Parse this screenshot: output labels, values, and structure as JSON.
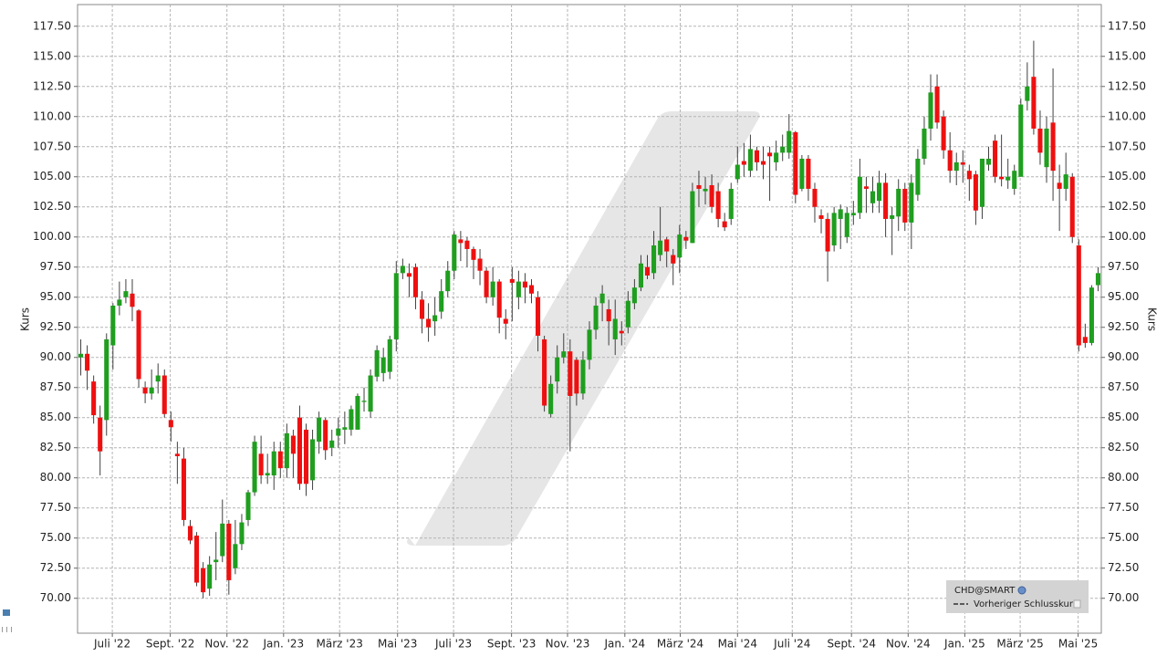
{
  "chart_data": {
    "type": "candlestick",
    "name": "CHD@SMART",
    "reference_line_label": "Vorheriger Schlusskurs",
    "ylabel": "Kurs",
    "up_color": "#1f9e1f",
    "down_color": "#ee1010",
    "wick_color": "#404040",
    "grid": true,
    "legend": "lower right",
    "xlim": [
      -0.5,
      158.5
    ],
    "ylim": [
      67.1,
      119.3
    ],
    "xticks": [
      {
        "value": 4.9,
        "label": "Juli '22"
      },
      {
        "value": 13.9,
        "label": "Sept. '22"
      },
      {
        "value": 22.7,
        "label": "Nov. '22"
      },
      {
        "value": 31.5,
        "label": "Jan. '23"
      },
      {
        "value": 40.2,
        "label": "März '23"
      },
      {
        "value": 49.2,
        "label": "Mai '23"
      },
      {
        "value": 57.9,
        "label": "Juli '23"
      },
      {
        "value": 66.9,
        "label": "Sept. '23"
      },
      {
        "value": 75.6,
        "label": "Nov. '23"
      },
      {
        "value": 84.5,
        "label": "Jan. '24"
      },
      {
        "value": 93.1,
        "label": "März '24"
      },
      {
        "value": 102,
        "label": "Mai '24"
      },
      {
        "value": 110.5,
        "label": "Juli '24"
      },
      {
        "value": 119.7,
        "label": "Sept. '24"
      },
      {
        "value": 128.5,
        "label": "Nov. '24"
      },
      {
        "value": 137.3,
        "label": "Jan. '25"
      },
      {
        "value": 145.9,
        "label": "März '25"
      },
      {
        "value": 154.9,
        "label": "Mai '25"
      }
    ],
    "yticks": [
      {
        "value": 70,
        "label": "70.00"
      },
      {
        "value": 72.5,
        "label": "72.50"
      },
      {
        "value": 75,
        "label": "75.00"
      },
      {
        "value": 77.5,
        "label": "77.50"
      },
      {
        "value": 80,
        "label": "80.00"
      },
      {
        "value": 82.5,
        "label": "82.50"
      },
      {
        "value": 85,
        "label": "85.00"
      },
      {
        "value": 87.5,
        "label": "87.50"
      },
      {
        "value": 90,
        "label": "90.00"
      },
      {
        "value": 92.5,
        "label": "92.50"
      },
      {
        "value": 95,
        "label": "95.00"
      },
      {
        "value": 97.5,
        "label": "97.50"
      },
      {
        "value": 100,
        "label": "100.00"
      },
      {
        "value": 102.5,
        "label": "102.50"
      },
      {
        "value": 105,
        "label": "105.00"
      },
      {
        "value": 107.5,
        "label": "107.50"
      },
      {
        "value": 110,
        "label": "110.00"
      },
      {
        "value": 112.5,
        "label": "112.50"
      },
      {
        "value": 115,
        "label": "115.00"
      },
      {
        "value": 117.5,
        "label": "117.50"
      }
    ],
    "open": [
      90,
      90.3,
      88,
      85,
      84.8,
      91,
      94.3,
      95,
      95.3,
      93.9,
      87.5,
      87,
      88,
      88.5,
      84.8,
      82,
      81.6,
      76,
      75.2,
      72.5,
      70.8,
      73,
      73.5,
      76.2,
      72.5,
      74.5,
      76.5,
      78.8,
      82,
      80.2,
      80.2,
      82.2,
      80.8,
      83.5,
      85,
      84,
      79.8,
      83,
      84.8,
      82.5,
      83.5,
      84,
      84,
      84,
      86.3,
      85.5,
      88.4,
      88.7,
      88.8,
      91.5,
      97,
      97,
      97.5,
      94.8,
      93.2,
      93,
      93.8,
      95.5,
      97.2,
      99.8,
      99.7,
      99,
      98.2,
      97.2,
      95,
      96.3,
      93.2,
      96.5,
      95,
      96.3,
      96,
      95,
      91.5,
      85.3,
      88,
      90,
      90.5,
      89.8,
      87,
      89.8,
      92.3,
      94.5,
      94,
      91.5,
      92.2,
      92.5,
      94.5,
      95.8,
      97.5,
      97,
      98.5,
      99.8,
      98.5,
      98.3,
      100,
      99.5,
      104.3,
      103.8,
      104.3,
      103.8,
      101.3,
      101.5,
      104.8,
      106.3,
      105.5,
      107.2,
      106.3,
      107,
      106.2,
      107,
      107,
      108.7,
      104,
      106.5,
      104,
      101.8,
      101.5,
      99.3,
      101.5,
      100,
      101.8,
      102,
      104.2,
      102.8,
      103,
      104.5,
      101.5,
      101.7,
      104,
      101.2,
      103.5,
      106.5,
      109,
      112.5,
      110,
      107.2,
      105.5,
      106.2,
      105.5,
      105.2,
      102.5,
      106,
      108,
      105,
      104.7,
      104,
      105,
      111.3,
      113.3,
      109,
      105.8,
      109.5,
      104.5,
      104,
      105,
      99.3,
      91.7,
      91.2,
      96
    ],
    "high": [
      91.5,
      91,
      88.5,
      86,
      92,
      94.5,
      96.3,
      96.5,
      96.5,
      94,
      88,
      89,
      89.5,
      89,
      85.5,
      83,
      82.5,
      76.5,
      75.5,
      73,
      73.5,
      75.5,
      78.2,
      76.5,
      76.5,
      77,
      79,
      83.5,
      83.5,
      82,
      83,
      83,
      84.5,
      84,
      86,
      84.5,
      84,
      85.5,
      85,
      84,
      85,
      85.5,
      86,
      87,
      87.5,
      89,
      91,
      90.8,
      91.8,
      98,
      98.2,
      97.8,
      97.8,
      95.5,
      94.5,
      95,
      96.5,
      98,
      100.5,
      100.5,
      100,
      99.2,
      99,
      97.5,
      97.5,
      96.5,
      94,
      97.5,
      97.2,
      97,
      96.5,
      95.5,
      91.8,
      88.5,
      91,
      92,
      91.5,
      90,
      90.5,
      93,
      95,
      96,
      94.8,
      94.8,
      93,
      95.5,
      96.5,
      98.5,
      98.5,
      100.5,
      102.5,
      100,
      99,
      101,
      100.5,
      104.5,
      105.5,
      105,
      105.2,
      104.5,
      102,
      104.5,
      107.5,
      107.8,
      108.5,
      107.5,
      107.5,
      107.5,
      108,
      108.5,
      110.2,
      108.8,
      106.8,
      106.8,
      104.5,
      102.3,
      102,
      102.5,
      102.7,
      102.5,
      103,
      106.5,
      105,
      105,
      105.5,
      105.3,
      102.5,
      104.8,
      104.5,
      105.2,
      107.3,
      110,
      113.5,
      113.5,
      110.5,
      108.7,
      107,
      107.2,
      106,
      105.5,
      106.5,
      107.5,
      108.5,
      108.5,
      106.5,
      106,
      111.5,
      114.5,
      116.3,
      110.5,
      110,
      114,
      106,
      107,
      105.3,
      99.8,
      92.8,
      96,
      97.5
    ],
    "low": [
      88.5,
      87.3,
      84.5,
      80.2,
      83.5,
      89,
      93.5,
      94.5,
      93,
      87.5,
      86.2,
      86.5,
      87,
      85,
      83,
      79.5,
      76,
      74.5,
      71,
      70,
      70.2,
      71.5,
      73,
      70.3,
      72,
      74,
      76,
      78.5,
      79.5,
      79.5,
      79,
      80,
      80,
      80,
      79,
      78.5,
      79,
      82,
      81.5,
      81.8,
      82.5,
      82.8,
      83.5,
      84,
      85.5,
      85,
      88,
      88,
      88.2,
      90.5,
      96.5,
      95,
      94,
      92,
      91.3,
      91.8,
      93.2,
      95,
      96.5,
      98,
      97.5,
      96.5,
      96,
      94.5,
      94.3,
      92,
      91.5,
      93,
      94,
      94.5,
      94.5,
      90.5,
      85.5,
      85,
      87,
      89.5,
      82.2,
      86,
      86.5,
      89,
      91.5,
      93,
      91,
      90.2,
      91,
      92,
      94,
      95.5,
      96.5,
      96.5,
      98,
      97.5,
      96,
      97,
      99,
      99.5,
      102.5,
      102.7,
      102,
      100.8,
      100.5,
      101,
      104.5,
      105,
      105,
      105.5,
      104.8,
      103,
      105.5,
      106.3,
      106.5,
      102.8,
      103.8,
      103,
      101.2,
      100.3,
      96.3,
      98.8,
      99,
      99.5,
      101,
      101.5,
      102,
      102,
      102,
      100,
      98.5,
      100.5,
      100.5,
      99,
      103,
      106,
      108,
      109,
      106.5,
      104.5,
      104.3,
      104.5,
      103,
      101,
      101.5,
      105.5,
      104.5,
      104.2,
      104,
      103.5,
      105,
      110.5,
      108.5,
      106,
      104.5,
      103,
      100.5,
      103,
      99.5,
      90.5,
      90.8,
      91,
      95.5
    ],
    "close": [
      90.3,
      88.9,
      85.2,
      82.2,
      91.5,
      94.3,
      94.8,
      95.5,
      94.2,
      88.2,
      87,
      87.5,
      88.5,
      85.3,
      84.2,
      81.8,
      76.5,
      74.8,
      71.3,
      70.5,
      72.8,
      73.2,
      76.2,
      71.5,
      74.5,
      76.3,
      78.8,
      83,
      80.2,
      80.4,
      82.2,
      80.8,
      83.7,
      82,
      79.5,
      79.5,
      83.2,
      85,
      82.3,
      83.1,
      84.1,
      84.2,
      85.7,
      86.8,
      86.4,
      88.5,
      90.6,
      90,
      91.5,
      97,
      97.6,
      96.7,
      95,
      93.2,
      92.5,
      93.5,
      95.5,
      97.2,
      100.2,
      99.5,
      99,
      98.1,
      97.2,
      95,
      96.3,
      93.3,
      92.8,
      96.2,
      96.3,
      95.8,
      95.3,
      91.8,
      86,
      87.8,
      90,
      90.5,
      86.8,
      87,
      89.8,
      92.3,
      94.3,
      95.3,
      93,
      93.2,
      92,
      94.7,
      95.8,
      97.8,
      96.8,
      99.3,
      99.7,
      98.8,
      97.8,
      100.2,
      99.7,
      103.8,
      104,
      104,
      102.5,
      101.5,
      100.8,
      104,
      106,
      106,
      107.3,
      106.2,
      106,
      106.7,
      107,
      107.5,
      108.8,
      103.5,
      106.5,
      104,
      102.5,
      101.5,
      98.8,
      102,
      102.3,
      102,
      102,
      105,
      104,
      103.8,
      104.5,
      101.5,
      101.8,
      104,
      101.2,
      104.5,
      106.5,
      109,
      112,
      109.5,
      107.2,
      105.5,
      106.2,
      106,
      104.8,
      102.2,
      106.5,
      106.5,
      105,
      104.8,
      105,
      105.5,
      111,
      112.5,
      109,
      107,
      109,
      105.5,
      104,
      105.2,
      100,
      91,
      91.2,
      95.8,
      97
    ]
  }
}
